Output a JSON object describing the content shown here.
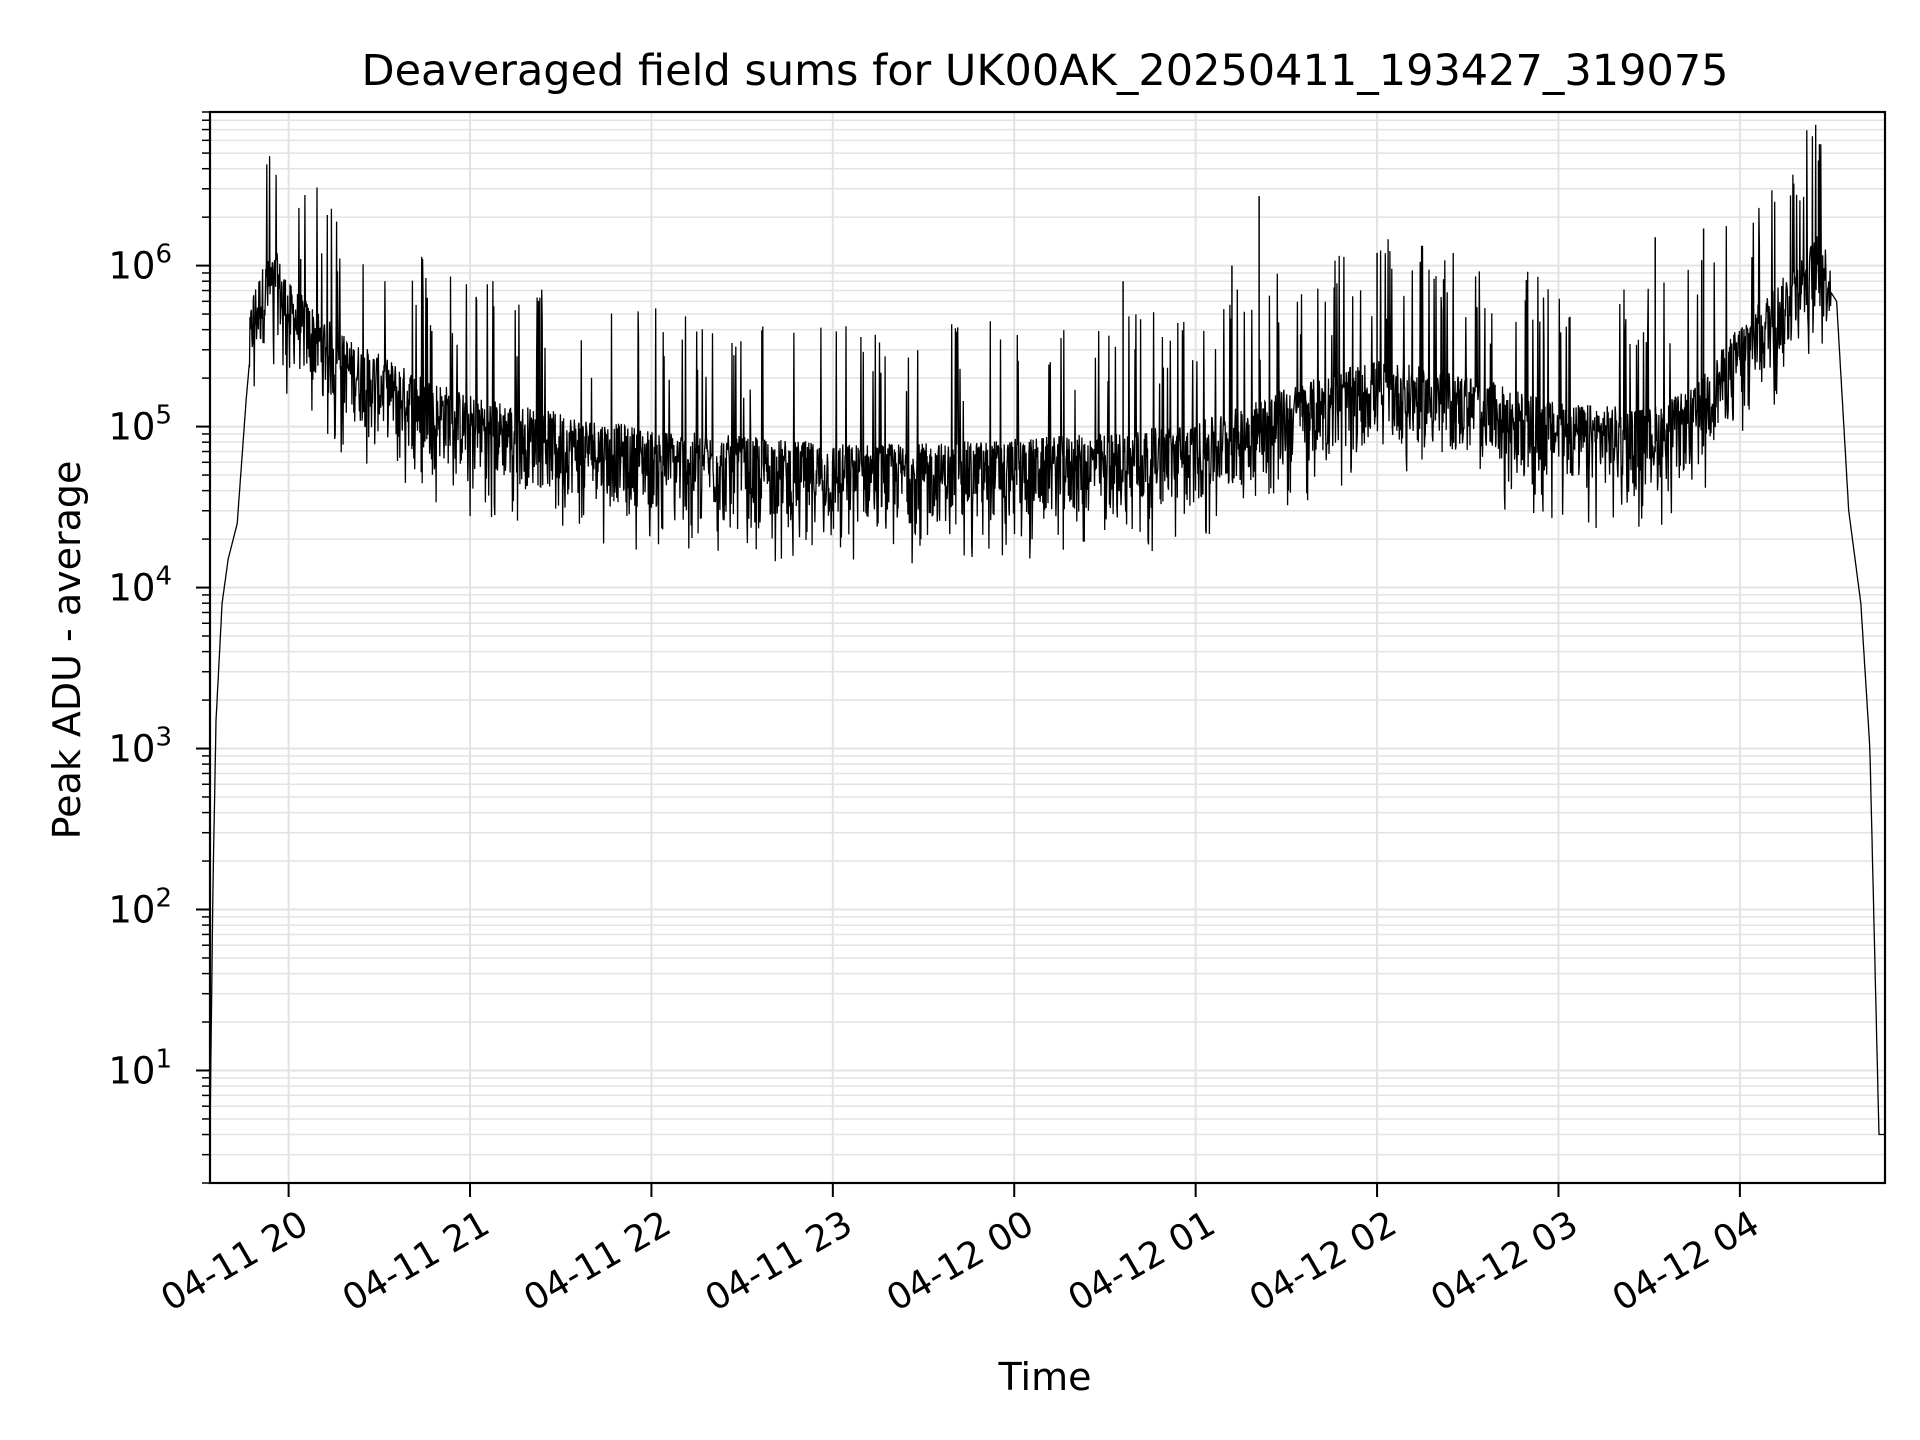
{
  "chart_data": {
    "type": "line",
    "title": "Deaveraged field sums for UK00AK_20250411_193427_319075",
    "xlabel": "Time",
    "ylabel": "Peak ADU - average",
    "yscale": "log",
    "ylim": [
      2,
      9000000
    ],
    "xlim": [
      "2025-04-11 19:34",
      "2025-04-12 04:48"
    ],
    "grid": "both",
    "line_color": "#000000",
    "grid_color": "#e3e3e3",
    "x_ticks": [
      {
        "value": "2025-04-11 20:00",
        "label": "04-11 20"
      },
      {
        "value": "2025-04-11 21:00",
        "label": "04-11 21"
      },
      {
        "value": "2025-04-11 22:00",
        "label": "04-11 22"
      },
      {
        "value": "2025-04-11 23:00",
        "label": "04-11 23"
      },
      {
        "value": "2025-04-12 00:00",
        "label": "04-12 00"
      },
      {
        "value": "2025-04-12 01:00",
        "label": "04-12 01"
      },
      {
        "value": "2025-04-12 02:00",
        "label": "04-12 02"
      },
      {
        "value": "2025-04-12 03:00",
        "label": "04-12 03"
      },
      {
        "value": "2025-04-12 04:00",
        "label": "04-12 04"
      }
    ],
    "y_ticks": [
      {
        "value": 10,
        "base": "10",
        "exp": "1"
      },
      {
        "value": 100,
        "base": "10",
        "exp": "2"
      },
      {
        "value": 1000,
        "base": "10",
        "exp": "3"
      },
      {
        "value": 10000,
        "base": "10",
        "exp": "4"
      },
      {
        "value": 100000,
        "base": "10",
        "exp": "5"
      },
      {
        "value": 1000000,
        "base": "10",
        "exp": "6"
      }
    ],
    "series": [
      {
        "points": [
          [
            "2025-04-11 19:34",
            4
          ],
          [
            "2025-04-11 19:35",
            150
          ],
          [
            "2025-04-11 19:36",
            1500
          ],
          [
            "2025-04-11 19:38",
            8000
          ],
          [
            "2025-04-11 19:40",
            15000
          ],
          [
            "2025-04-11 19:43",
            25000
          ],
          [
            "2025-04-11 19:46",
            150000
          ],
          [
            "2025-04-11 19:48",
            400000
          ],
          [
            "2025-04-11 19:52",
            600000
          ],
          [
            "2025-04-11 19:56",
            700000
          ],
          [
            "2025-04-11 20:00",
            450000
          ],
          [
            "2025-04-11 20:10",
            300000
          ],
          [
            "2025-04-11 20:20",
            200000
          ],
          [
            "2025-04-11 20:40",
            130000
          ],
          [
            "2025-04-11 21:00",
            90000
          ],
          [
            "2025-04-11 21:30",
            70000
          ],
          [
            "2025-04-11 22:00",
            55000
          ],
          [
            "2025-04-11 22:30",
            50000
          ],
          [
            "2025-04-11 23:00",
            45000
          ],
          [
            "2025-04-11 23:30",
            45000
          ],
          [
            "2025-04-12 00:00",
            48000
          ],
          [
            "2025-04-12 00:30",
            52000
          ],
          [
            "2025-04-12 01:00",
            60000
          ],
          [
            "2025-04-12 01:30",
            100000
          ],
          [
            "2025-04-12 02:00",
            150000
          ],
          [
            "2025-04-12 02:30",
            120000
          ],
          [
            "2025-04-12 03:00",
            80000
          ],
          [
            "2025-04-12 03:30",
            75000
          ],
          [
            "2025-04-12 03:45",
            100000
          ],
          [
            "2025-04-12 04:00",
            250000
          ],
          [
            "2025-04-12 04:15",
            500000
          ],
          [
            "2025-04-12 04:26",
            900000
          ],
          [
            "2025-04-12 04:32",
            600000
          ],
          [
            "2025-04-12 04:36",
            30000
          ],
          [
            "2025-04-12 04:40",
            8000
          ],
          [
            "2025-04-12 04:43",
            1000
          ],
          [
            "2025-04-12 04:46",
            4
          ],
          [
            "2025-04-12 04:48",
            4
          ]
        ],
        "spikes": [
          [
            "2025-04-11 20:04",
            1100000
          ],
          [
            "2025-04-12 00:36",
            800000
          ],
          [
            "2025-04-12 01:12",
            1000000
          ],
          [
            "2025-04-12 01:21",
            2700000
          ],
          [
            "2025-04-12 02:00",
            1200000
          ],
          [
            "2025-04-12 03:32",
            1500000
          ],
          [
            "2025-04-12 03:48",
            1700000
          ],
          [
            "2025-04-12 04:26",
            4500000
          ]
        ]
      }
    ]
  }
}
